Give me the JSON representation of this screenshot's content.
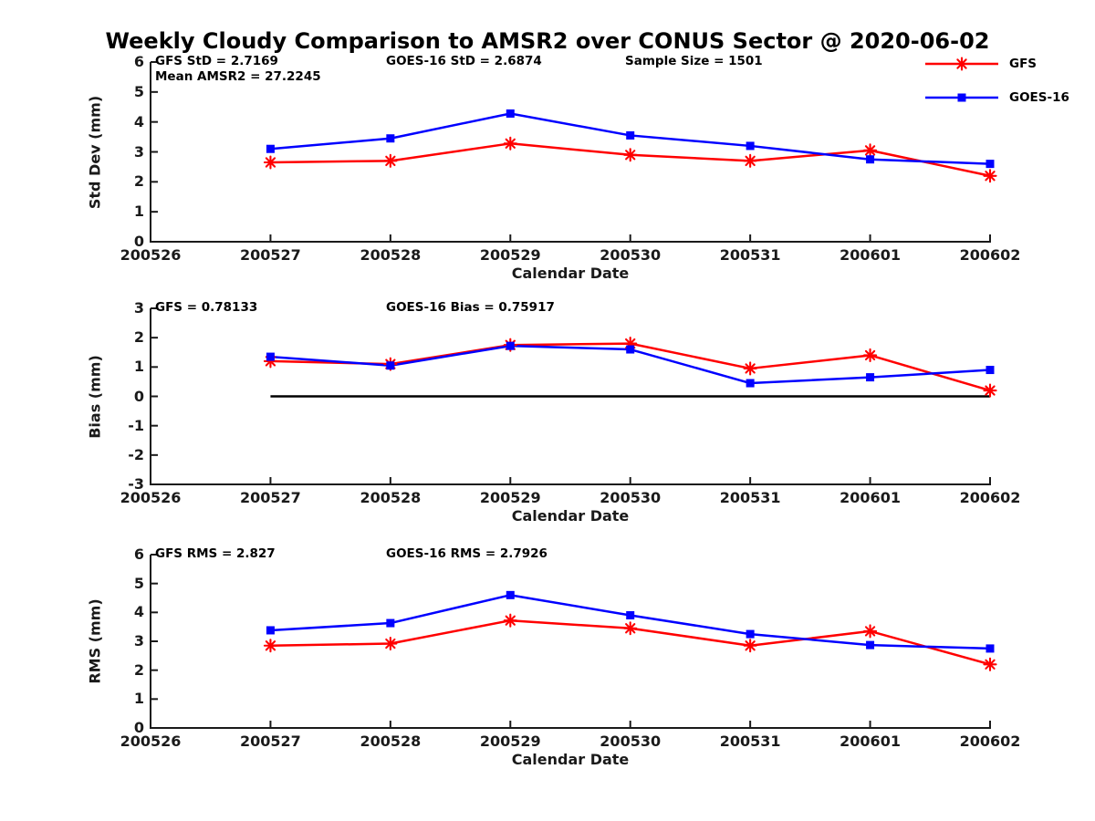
{
  "title": "Weekly Cloudy Comparison to AMSR2 over CONUS Sector @ 2020-06-02",
  "colors": {
    "gfs": "#ff0000",
    "goes16": "#0000ff",
    "axis": "#1a1a1a",
    "zero_line": "#000000",
    "background": "#ffffff"
  },
  "legend": {
    "items": [
      {
        "label": "GFS",
        "color": "#ff0000",
        "marker": "asterisk"
      },
      {
        "label": "GOES-16",
        "color": "#0000ff",
        "marker": "square"
      }
    ]
  },
  "x_axis": {
    "label": "Calendar Date",
    "ticks": [
      "200526",
      "200527",
      "200528",
      "200529",
      "200530",
      "200531",
      "200601",
      "200602"
    ]
  },
  "chart_data": [
    {
      "type": "line",
      "name": "std-dev",
      "ylabel": "Std Dev (mm)",
      "ylim": [
        0,
        6
      ],
      "yticks": [
        0,
        1,
        2,
        3,
        4,
        5,
        6
      ],
      "xlabel": "Calendar Date",
      "categories": [
        "200527",
        "200528",
        "200529",
        "200530",
        "200531",
        "200601",
        "200602"
      ],
      "annotations": [
        {
          "text": "GFS StD = 2.7169"
        },
        {
          "text": "Mean AMSR2 = 27.2245"
        },
        {
          "text": "GOES-16 StD = 2.6874"
        },
        {
          "text": "Sample Size = 1501"
        }
      ],
      "series": [
        {
          "name": "GFS",
          "color": "#ff0000",
          "marker": "asterisk",
          "values": [
            2.65,
            2.7,
            3.28,
            2.9,
            2.7,
            3.05,
            2.2
          ]
        },
        {
          "name": "GOES-16",
          "color": "#0000ff",
          "marker": "square",
          "values": [
            3.1,
            3.45,
            4.28,
            3.55,
            3.2,
            2.75,
            2.6
          ]
        }
      ],
      "zero_line": false,
      "grid": false
    },
    {
      "type": "line",
      "name": "bias",
      "ylabel": "Bias (mm)",
      "ylim": [
        -3,
        3
      ],
      "yticks": [
        -3,
        -2,
        -1,
        0,
        1,
        2,
        3
      ],
      "xlabel": "Calendar Date",
      "categories": [
        "200527",
        "200528",
        "200529",
        "200530",
        "200531",
        "200601",
        "200602"
      ],
      "annotations": [
        {
          "text": "GFS = 0.78133"
        },
        {
          "text": "GOES-16 Bias  = 0.75917"
        }
      ],
      "series": [
        {
          "name": "GFS",
          "color": "#ff0000",
          "marker": "asterisk",
          "values": [
            1.2,
            1.1,
            1.75,
            1.8,
            0.95,
            1.4,
            0.2
          ]
        },
        {
          "name": "GOES-16",
          "color": "#0000ff",
          "marker": "square",
          "values": [
            1.35,
            1.05,
            1.72,
            1.6,
            0.45,
            0.65,
            0.9
          ]
        }
      ],
      "zero_line": true,
      "grid": false
    },
    {
      "type": "line",
      "name": "rms",
      "ylabel": "RMS (mm)",
      "ylim": [
        0,
        6
      ],
      "yticks": [
        0,
        1,
        2,
        3,
        4,
        5,
        6
      ],
      "xlabel": "Calendar Date",
      "categories": [
        "200527",
        "200528",
        "200529",
        "200530",
        "200531",
        "200601",
        "200602"
      ],
      "annotations": [
        {
          "text": "GFS RMS = 2.827"
        },
        {
          "text": "GOES-16 RMS = 2.7926"
        }
      ],
      "series": [
        {
          "name": "GFS",
          "color": "#ff0000",
          "marker": "asterisk",
          "values": [
            2.85,
            2.92,
            3.72,
            3.45,
            2.85,
            3.35,
            2.2
          ]
        },
        {
          "name": "GOES-16",
          "color": "#0000ff",
          "marker": "square",
          "values": [
            3.38,
            3.63,
            4.6,
            3.9,
            3.25,
            2.87,
            2.75
          ]
        }
      ],
      "zero_line": false,
      "grid": false
    }
  ]
}
